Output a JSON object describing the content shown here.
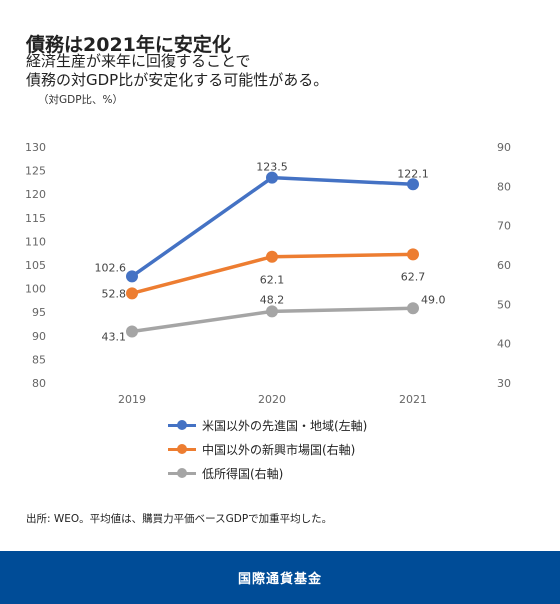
{
  "header": {
    "title": "債務は2021年に安定化",
    "subtitle_line1": "経済生産が来年に回復することで",
    "subtitle_line2": "債務の対GDP比が安定化する可能性がある。",
    "unit": "（対GDP比、%）"
  },
  "chart_data": {
    "type": "line",
    "categories": [
      "2019",
      "2020",
      "2021"
    ],
    "y_left": {
      "min": 80,
      "max": 130,
      "step": 5
    },
    "y_right": {
      "min": 30,
      "max": 90,
      "step": 10
    },
    "series": [
      {
        "name": "米国以外の先進国・地域(左軸)",
        "axis": "left",
        "color": "#4472c4",
        "values": [
          102.6,
          123.5,
          122.1
        ],
        "labels": [
          "102.6",
          "123.5",
          "122.1"
        ]
      },
      {
        "name": "中国以外の新興市場国(右軸)",
        "axis": "right",
        "color": "#ed7d31",
        "values": [
          52.8,
          62.1,
          62.7
        ],
        "labels": [
          "52.8",
          "62.1",
          "62.7"
        ]
      },
      {
        "name": "低所得国(右軸)",
        "axis": "right",
        "color": "#a5a5a5",
        "values": [
          43.1,
          48.2,
          49.0
        ],
        "labels": [
          "43.1",
          "48.2",
          "49.0"
        ]
      }
    ],
    "legend": "bottom",
    "grid": false
  },
  "source": "出所: WEO。平均値は、購買力平価ベースGDPで加重平均した。",
  "footer": {
    "label": "国際通貨基金"
  }
}
